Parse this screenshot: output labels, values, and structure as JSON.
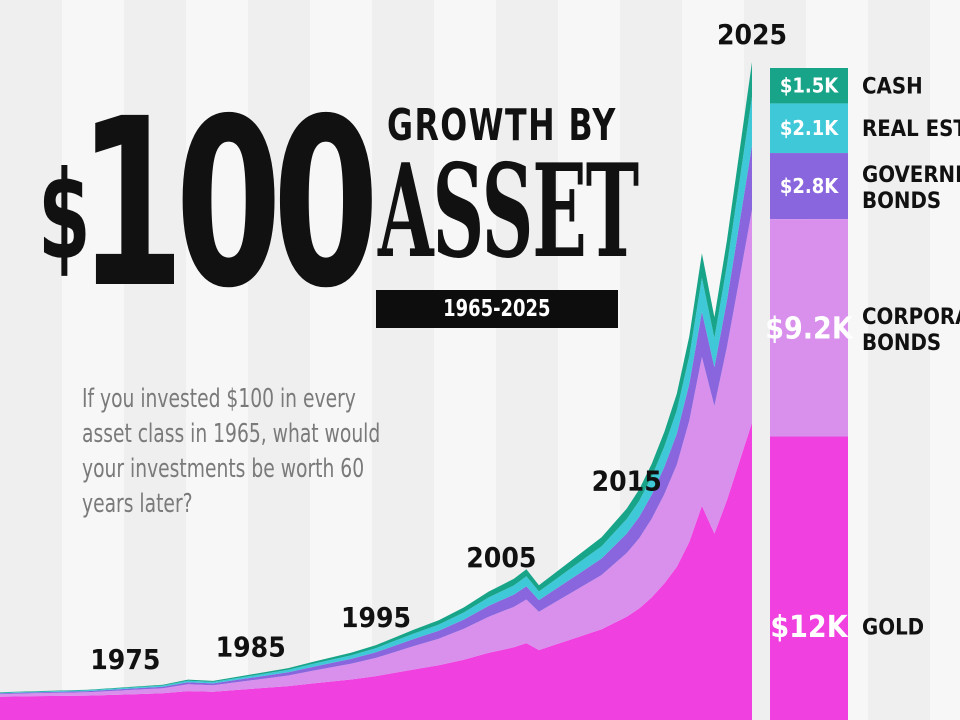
{
  "header": {
    "dollar": "$",
    "amount": "100",
    "title_line1": "GROWTH BY",
    "title_line2": "ASSET",
    "year_range": "1965-2025"
  },
  "subtitle": "If you invested $100 in every asset class in 1965, what would your investments be worth 60 years later?",
  "chart_data": {
    "type": "area",
    "stacked": true,
    "x_labels": [
      "1975",
      "1985",
      "1995",
      "2005",
      "2015",
      "2025"
    ],
    "x_start": 1965,
    "x_end": 2025,
    "series": [
      {
        "name": "GOLD",
        "value_label": "$12K",
        "final": 12000,
        "color": "#f040e0"
      },
      {
        "name": "CORPORATE BONDS",
        "value_label": "$9.2K",
        "final": 9200,
        "color": "#d890ec"
      },
      {
        "name": "GOVERNMENT BONDS",
        "value_label": "$2.8K",
        "final": 2800,
        "color": "#8a66de"
      },
      {
        "name": "REAL ESTATE",
        "value_label": "$2.1K",
        "final": 2100,
        "color": "#3ec8d8"
      },
      {
        "name": "CASH",
        "value_label": "$1.5K",
        "final": 1500,
        "color": "#18a488"
      }
    ]
  }
}
